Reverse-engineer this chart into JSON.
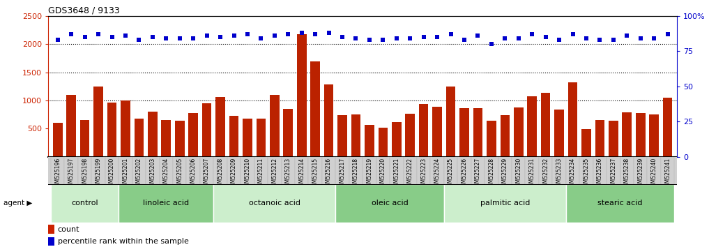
{
  "title": "GDS3648 / 9133",
  "ylim_left": [
    0,
    2500
  ],
  "ylim_right": [
    0,
    100
  ],
  "yticks_left": [
    500,
    1000,
    1500,
    2000,
    2500
  ],
  "yticks_right": [
    0,
    25,
    50,
    75,
    100
  ],
  "bar_color": "#bb2200",
  "dot_color": "#0000cc",
  "samples": [
    "GSM525196",
    "GSM525197",
    "GSM525198",
    "GSM525199",
    "GSM525200",
    "GSM525201",
    "GSM525202",
    "GSM525203",
    "GSM525204",
    "GSM525205",
    "GSM525206",
    "GSM525207",
    "GSM525208",
    "GSM525209",
    "GSM525210",
    "GSM525211",
    "GSM525212",
    "GSM525213",
    "GSM525214",
    "GSM525215",
    "GSM525216",
    "GSM525217",
    "GSM525218",
    "GSM525219",
    "GSM525220",
    "GSM525221",
    "GSM525222",
    "GSM525223",
    "GSM525224",
    "GSM525225",
    "GSM525226",
    "GSM525227",
    "GSM525228",
    "GSM525229",
    "GSM525230",
    "GSM525231",
    "GSM525232",
    "GSM525233",
    "GSM525234",
    "GSM525235",
    "GSM525236",
    "GSM525237",
    "GSM525238",
    "GSM525239",
    "GSM525240",
    "GSM525241"
  ],
  "counts": [
    600,
    1100,
    650,
    1250,
    960,
    1000,
    680,
    800,
    660,
    640,
    780,
    950,
    1060,
    730,
    680,
    680,
    1100,
    850,
    2180,
    1700,
    1290,
    740,
    750,
    570,
    520,
    620,
    760,
    940,
    890,
    1250,
    870,
    870,
    640,
    740,
    880,
    1080,
    1140,
    840,
    1320,
    490,
    650,
    640,
    790,
    780,
    750,
    1050
  ],
  "percentile_ranks": [
    83,
    87,
    85,
    87,
    85,
    86,
    83,
    85,
    84,
    84,
    84,
    86,
    85,
    86,
    87,
    84,
    86,
    87,
    88,
    87,
    88,
    85,
    84,
    83,
    83,
    84,
    84,
    85,
    85,
    87,
    83,
    86,
    80,
    84,
    84,
    87,
    85,
    83,
    87,
    84,
    83,
    83,
    86,
    84,
    84,
    87
  ],
  "groups": [
    {
      "label": "control",
      "start": 0,
      "end": 5
    },
    {
      "label": "linoleic acid",
      "start": 5,
      "end": 12
    },
    {
      "label": "octanoic acid",
      "start": 12,
      "end": 21
    },
    {
      "label": "oleic acid",
      "start": 21,
      "end": 29
    },
    {
      "label": "palmitic acid",
      "start": 29,
      "end": 38
    },
    {
      "label": "stearic acid",
      "start": 38,
      "end": 46
    }
  ],
  "group_colors": [
    "#cceecc",
    "#88cc88",
    "#cceecc",
    "#88cc88",
    "#cceecc",
    "#88cc88"
  ],
  "ylabel_left_color": "#cc2200",
  "ylabel_right_color": "#0000cc",
  "legend_count_color": "#cc2200",
  "legend_dot_color": "#0000cc"
}
